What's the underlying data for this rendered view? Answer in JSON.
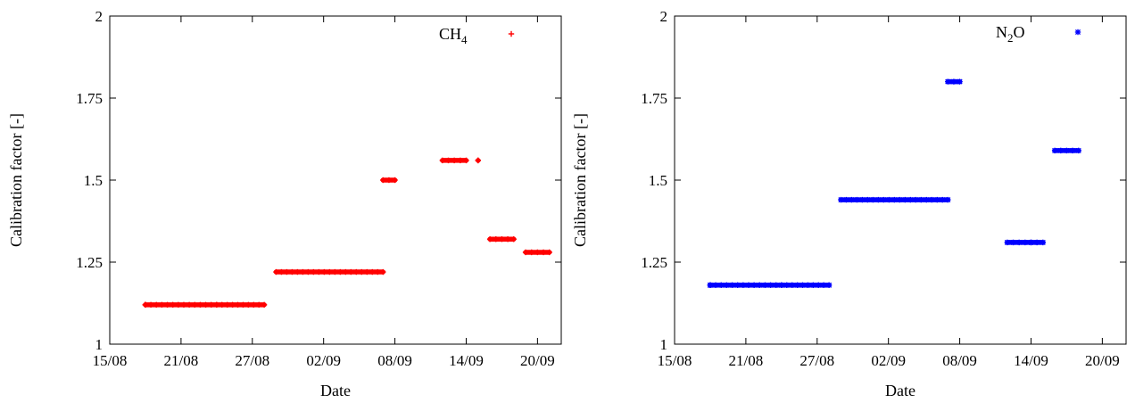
{
  "chart_data": [
    {
      "type": "scatter",
      "title": "",
      "xlabel": "Date",
      "ylabel": "Calibration factor [-]",
      "x_ticks": [
        "15/08",
        "21/08",
        "27/08",
        "02/09",
        "08/09",
        "14/09",
        "20/09"
      ],
      "x_tick_positions": [
        "2023-08-15",
        "2023-08-21",
        "2023-08-27",
        "2023-09-02",
        "2023-09-08",
        "2023-09-14",
        "2023-09-20"
      ],
      "xlim": [
        "2023-08-15",
        "2023-09-22"
      ],
      "y_ticks": [
        "1",
        "1.25",
        "1.5",
        "1.75",
        "2"
      ],
      "y_tick_values": [
        1,
        1.25,
        1.5,
        1.75,
        2
      ],
      "ylim": [
        1,
        2
      ],
      "grid": false,
      "legend_position": "top-right",
      "series": [
        {
          "name": "CH",
          "name_subscript": "4",
          "color": "#ff0000",
          "marker": "plus",
          "segments": [
            {
              "x_start": "2023-08-18",
              "x_end": "2023-08-18",
              "value": 1.12
            },
            {
              "x_start": "2023-08-18",
              "x_end": "2023-08-24",
              "value": 1.12
            },
            {
              "x_start": "2023-08-24",
              "x_end": "2023-08-28",
              "value": 1.12
            },
            {
              "x_start": "2023-08-29",
              "x_end": "2023-09-07",
              "value": 1.22
            },
            {
              "x_start": "2023-09-07",
              "x_end": "2023-09-08",
              "value": 1.5
            },
            {
              "x_start": "2023-09-12",
              "x_end": "2023-09-14",
              "value": 1.56
            },
            {
              "x_start": "2023-09-15",
              "x_end": "2023-09-15",
              "value": 1.56
            },
            {
              "x_start": "2023-09-16",
              "x_end": "2023-09-18",
              "value": 1.32
            },
            {
              "x_start": "2023-09-19",
              "x_end": "2023-09-21",
              "value": 1.28
            }
          ]
        }
      ]
    },
    {
      "type": "scatter",
      "title": "",
      "xlabel": "Date",
      "ylabel": "Calibration factor [-]",
      "x_ticks": [
        "15/08",
        "21/08",
        "27/08",
        "02/09",
        "08/09",
        "14/09",
        "20/09"
      ],
      "x_tick_positions": [
        "2023-08-15",
        "2023-08-21",
        "2023-08-27",
        "2023-09-02",
        "2023-09-08",
        "2023-09-14",
        "2023-09-20"
      ],
      "xlim": [
        "2023-08-15",
        "2023-09-22"
      ],
      "y_ticks": [
        "1",
        "1.25",
        "1.5",
        "1.75",
        "2"
      ],
      "y_tick_values": [
        1,
        1.25,
        1.5,
        1.75,
        2
      ],
      "ylim": [
        1,
        2
      ],
      "grid": false,
      "legend_position": "top-right",
      "series": [
        {
          "name": "N",
          "name_subscript": "2",
          "name_suffix": "O",
          "color": "#0000ff",
          "marker": "star",
          "segments": [
            {
              "x_start": "2023-08-18",
              "x_end": "2023-08-18",
              "value": 1.18
            },
            {
              "x_start": "2023-08-18",
              "x_end": "2023-08-24",
              "value": 1.18
            },
            {
              "x_start": "2023-08-24",
              "x_end": "2023-08-28",
              "value": 1.18
            },
            {
              "x_start": "2023-08-29",
              "x_end": "2023-09-07",
              "value": 1.44
            },
            {
              "x_start": "2023-09-07",
              "x_end": "2023-09-08",
              "value": 1.8
            },
            {
              "x_start": "2023-09-12",
              "x_end": "2023-09-14",
              "value": 1.31
            },
            {
              "x_start": "2023-09-14",
              "x_end": "2023-09-15",
              "value": 1.31
            },
            {
              "x_start": "2023-09-16",
              "x_end": "2023-09-18",
              "value": 1.59
            }
          ]
        }
      ]
    }
  ]
}
